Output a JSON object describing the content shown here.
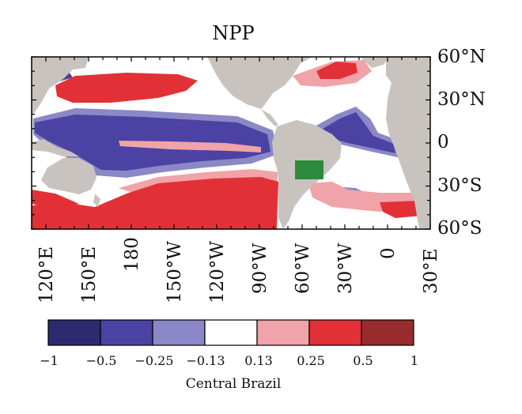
{
  "title": "NPP",
  "lat_labels": [
    "60°N",
    "30°N",
    "0",
    "30°S",
    "60°S"
  ],
  "lon_labels": [
    "120°E",
    "150°E",
    "180",
    "150°W",
    "120°W",
    "90°W",
    "60°W",
    "30°W",
    "0",
    "30°E"
  ],
  "map": {
    "lon_range": [
      110,
      390
    ],
    "lat_range": [
      -60,
      60
    ],
    "land_color": "#c9c3bf",
    "region_color": "#2e8b3b",
    "highlight_region_lon": [
      297,
      315
    ],
    "highlight_region_lat": [
      -25,
      -13
    ]
  },
  "colorbar": {
    "ticks": [
      "−1",
      "−0.5",
      "−0.25",
      "−0.13",
      "0.13",
      "0.25",
      "0.5",
      "1"
    ],
    "colors": [
      "#2f2a6e",
      "#4b42a3",
      "#8c87c6",
      "#ffffff",
      "#f0a3a8",
      "#e23136",
      "#982b2e"
    ],
    "caption": "Central Brazil"
  }
}
